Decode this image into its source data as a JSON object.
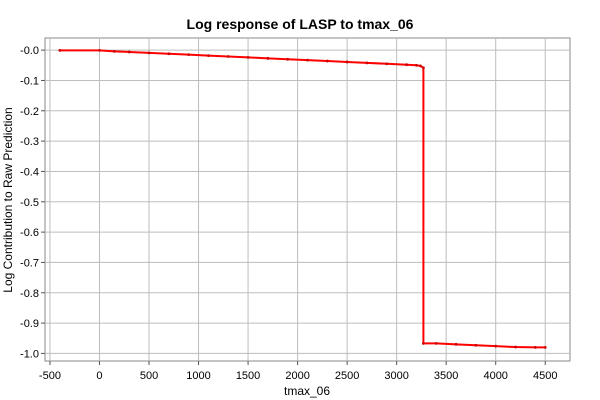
{
  "chart_data": {
    "type": "line",
    "title": "Log response of LASP to tmax_06",
    "xlabel": "tmax_06",
    "ylabel": "Log Contribution to Raw Prediction",
    "xlim": [
      -550,
      4750
    ],
    "ylim": [
      -1.025,
      0.04
    ],
    "x_ticks": [
      -500,
      0,
      500,
      1000,
      1500,
      2000,
      2500,
      3000,
      3500,
      4000,
      4500
    ],
    "y_ticks": [
      0.0,
      -0.1,
      -0.2,
      -0.3,
      -0.4,
      -0.5,
      -0.6,
      -0.7,
      -0.8,
      -0.9,
      -1.0
    ],
    "x_tick_labels": [
      "-500",
      "0",
      "500",
      "1000",
      "1500",
      "2000",
      "2500",
      "3000",
      "3500",
      "4000",
      "4500"
    ],
    "y_tick_labels": [
      "-0.0",
      "-0.1",
      "-0.2",
      "-0.3",
      "-0.4",
      "-0.5",
      "-0.6",
      "-0.7",
      "-0.8",
      "-0.9",
      "-1.0"
    ],
    "grid": true,
    "series": [
      {
        "color": "#ff0000",
        "marker_color": "#cc0000",
        "x": [
          -400,
          0,
          150,
          300,
          500,
          700,
          900,
          1100,
          1300,
          1500,
          1700,
          1900,
          2100,
          2300,
          2500,
          2700,
          2900,
          3100,
          3200,
          3240,
          3270,
          3270,
          3400,
          3600,
          3800,
          4000,
          4200,
          4400,
          4500
        ],
        "y": [
          -0.001,
          -0.001,
          -0.004,
          -0.006,
          -0.009,
          -0.012,
          -0.015,
          -0.018,
          -0.021,
          -0.024,
          -0.027,
          -0.03,
          -0.033,
          -0.036,
          -0.039,
          -0.042,
          -0.045,
          -0.048,
          -0.05,
          -0.052,
          -0.058,
          -0.967,
          -0.967,
          -0.97,
          -0.973,
          -0.976,
          -0.979,
          -0.98,
          -0.98
        ]
      }
    ]
  }
}
